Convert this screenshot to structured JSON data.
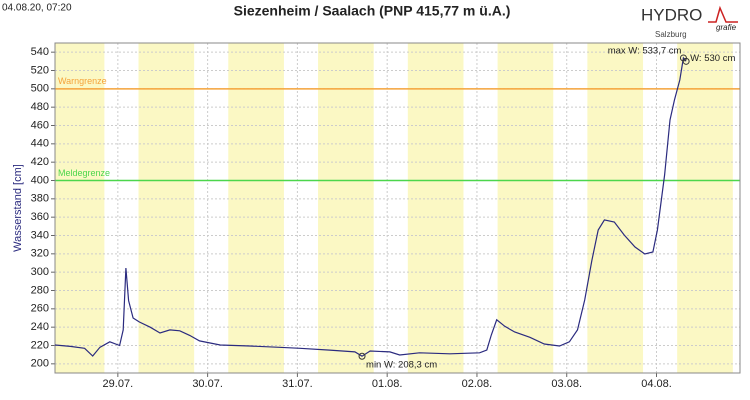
{
  "timestamp": "04.08.20, 07:20",
  "logo": {
    "name": "HYDRO",
    "suffix": "grafie",
    "region": "Salzburg"
  },
  "chart_data": {
    "type": "line",
    "title": "Siezenheim / Saalach (PNP 415,77 m ü.A.)",
    "y_label": "Wasserstand [cm]",
    "x": [
      28.3,
      28.47,
      28.63,
      28.72,
      28.8,
      28.91,
      29.02,
      29.06,
      29.09,
      29.12,
      29.17,
      29.24,
      29.36,
      29.47,
      29.58,
      29.69,
      29.8,
      29.91,
      30.14,
      30.47,
      30.8,
      31.03,
      31.36,
      31.64,
      31.72,
      31.81,
      32.03,
      32.14,
      32.36,
      32.7,
      33.03,
      33.11,
      33.16,
      33.22,
      33.31,
      33.42,
      33.59,
      33.75,
      33.92,
      34.03,
      34.12,
      34.2,
      34.28,
      34.35,
      34.42,
      34.53,
      34.64,
      34.76,
      34.87,
      34.96,
      35.01,
      35.09,
      35.15,
      35.2,
      35.26,
      35.3,
      35.33
    ],
    "series": [
      {
        "color": "#2b2b7f",
        "values": [
          220.5,
          219,
          217,
          208.5,
          218,
          224,
          220,
          237,
          304.5,
          269,
          250,
          245.6,
          240,
          233.6,
          237,
          236,
          231,
          225,
          220.5,
          219.5,
          218,
          217,
          215,
          213,
          208.3,
          214,
          213,
          209.6,
          212,
          211,
          212,
          215,
          231.5,
          248,
          241,
          234.7,
          229,
          221.6,
          219.5,
          224,
          237,
          269.6,
          313,
          346,
          357,
          354.7,
          340.5,
          327.5,
          319.8,
          322,
          346,
          406,
          466,
          488,
          509.6,
          533.7,
          530
        ]
      }
    ],
    "xlim": [
      28.3,
      35.93
    ],
    "xticks": [
      {
        "value": 29,
        "label": "29.07."
      },
      {
        "value": 30,
        "label": "30.07."
      },
      {
        "value": 31,
        "label": "31.07."
      },
      {
        "value": 32,
        "label": "01.08."
      },
      {
        "value": 33,
        "label": "02.08."
      },
      {
        "value": 34,
        "label": "03.08."
      },
      {
        "value": 35,
        "label": "04.08."
      }
    ],
    "ylim": [
      190,
      550
    ],
    "yticks": [
      200,
      220,
      240,
      260,
      280,
      300,
      320,
      340,
      360,
      380,
      400,
      420,
      440,
      460,
      480,
      500,
      520,
      540
    ],
    "grid": true,
    "reference_lines": [
      {
        "label": "Warngrenze",
        "value": 500,
        "color": "#f5a33a"
      },
      {
        "label": "Meldegrenze",
        "value": 400,
        "color": "#4cd64c"
      }
    ],
    "annotations": [
      {
        "label": "max W: 533,7 cm",
        "x": 35.3,
        "value": 533.7
      },
      {
        "label": "W: 530 cm",
        "x": 35.33,
        "value": 530
      },
      {
        "label": "min W: 208,3 cm",
        "x": 31.72,
        "value": 208.3
      }
    ]
  }
}
